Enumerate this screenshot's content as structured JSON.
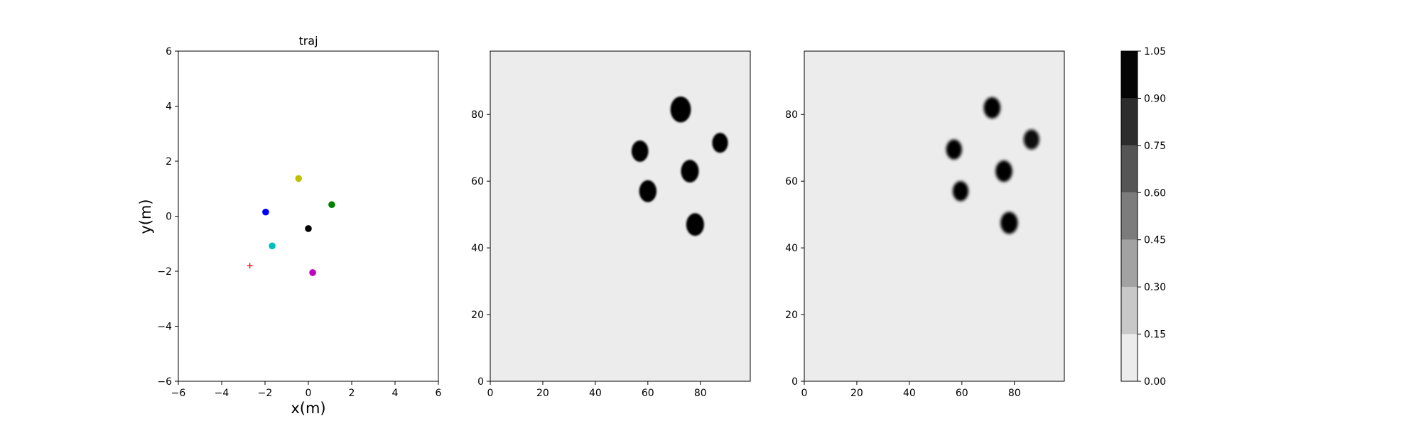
{
  "chart_data": [
    {
      "type": "scatter",
      "title": "traj",
      "xlabel": "x(m)",
      "ylabel": "y(m)",
      "xlim": [
        -6,
        6
      ],
      "ylim": [
        -6,
        6
      ],
      "xticks": [
        -6,
        -4,
        -2,
        0,
        2,
        4,
        6
      ],
      "yticks": [
        -6,
        -4,
        -2,
        0,
        2,
        4,
        6
      ],
      "grid": false,
      "points": [
        {
          "x": -0.45,
          "y": 1.37,
          "color": "#bfbf00",
          "marker": "circle"
        },
        {
          "x": 1.08,
          "y": 0.42,
          "color": "#008000",
          "marker": "circle"
        },
        {
          "x": -1.97,
          "y": 0.15,
          "color": "#0000ff",
          "marker": "circle"
        },
        {
          "x": 0.0,
          "y": -0.45,
          "color": "#000000",
          "marker": "circle"
        },
        {
          "x": -1.67,
          "y": -1.08,
          "color": "#00bfbf",
          "marker": "circle"
        },
        {
          "x": 0.2,
          "y": -2.05,
          "color": "#bf00bf",
          "marker": "circle"
        },
        {
          "x": -2.7,
          "y": -1.8,
          "color": "#ff0000",
          "marker": "plus"
        }
      ]
    },
    {
      "type": "heatmap",
      "xlim": [
        0,
        99
      ],
      "ylim": [
        0,
        99
      ],
      "xticks": [
        0,
        20,
        40,
        60,
        80
      ],
      "yticks": [
        0,
        20,
        40,
        60,
        80
      ],
      "background_value": 0.05,
      "blobs": [
        {
          "x": 72.5,
          "y": 81.5,
          "r": 3.9,
          "value": 1.0
        },
        {
          "x": 57,
          "y": 69,
          "r": 3.2,
          "value": 1.0
        },
        {
          "x": 87.5,
          "y": 71.5,
          "r": 3.0,
          "value": 1.0
        },
        {
          "x": 76,
          "y": 63,
          "r": 3.4,
          "value": 1.0
        },
        {
          "x": 60,
          "y": 57,
          "r": 3.3,
          "value": 1.0
        },
        {
          "x": 78,
          "y": 47,
          "r": 3.4,
          "value": 1.0
        }
      ]
    },
    {
      "type": "heatmap",
      "xlim": [
        0,
        99
      ],
      "ylim": [
        0,
        99
      ],
      "xticks": [
        0,
        20,
        40,
        60,
        80
      ],
      "yticks": [
        0,
        20,
        40,
        60,
        80
      ],
      "background_value": 0.05,
      "blobs": [
        {
          "x": 71.5,
          "y": 82,
          "r": 3.2,
          "value": 1.0
        },
        {
          "x": 57,
          "y": 69.5,
          "r": 3.0,
          "value": 1.0
        },
        {
          "x": 86.5,
          "y": 72.5,
          "r": 3.0,
          "value": 0.9
        },
        {
          "x": 76,
          "y": 63,
          "r": 3.2,
          "value": 1.0
        },
        {
          "x": 59.5,
          "y": 57,
          "r": 3.0,
          "value": 1.0
        },
        {
          "x": 78,
          "y": 47.5,
          "r": 3.3,
          "value": 1.0
        }
      ]
    }
  ],
  "colorbar": {
    "levels": [
      0.0,
      0.15,
      0.3,
      0.45,
      0.6,
      0.75,
      0.9,
      1.05
    ],
    "labels": [
      "0.00",
      "0.15",
      "0.30",
      "0.45",
      "0.60",
      "0.75",
      "0.90",
      "1.05"
    ],
    "colors": [
      "#ececec",
      "#c8c8c8",
      "#a2a2a2",
      "#7c7c7c",
      "#555555",
      "#2d2d2d",
      "#050505"
    ]
  }
}
